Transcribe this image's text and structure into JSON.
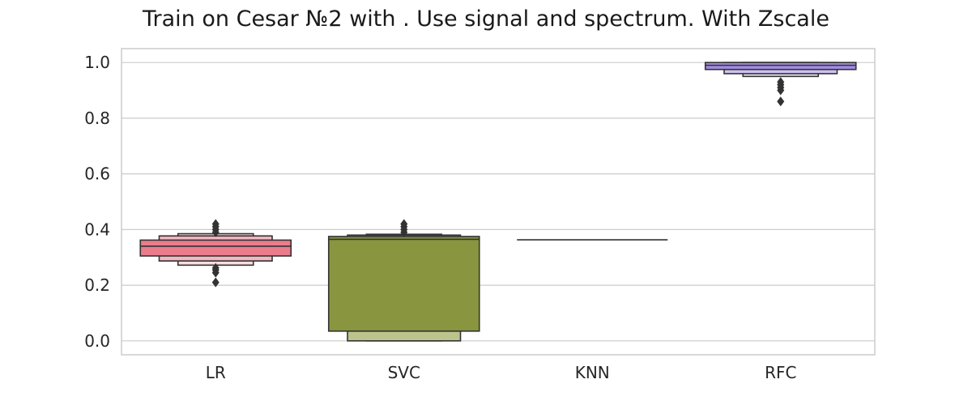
{
  "chart_data": {
    "type": "boxen",
    "title": "Train on Cesar №2 with . Use signal and spectrum. With Zscale",
    "xlabel": "",
    "ylabel": "",
    "ylim": [
      -0.05,
      1.05
    ],
    "yticks": [
      0.0,
      0.2,
      0.4,
      0.6,
      0.8,
      1.0
    ],
    "ytick_labels": [
      "0.0",
      "0.2",
      "0.4",
      "0.6",
      "0.8",
      "1.0"
    ],
    "grid": "horizontal",
    "categories": [
      "LR",
      "SVC",
      "KNN",
      "RFC"
    ],
    "colors": [
      "#ea7c8c",
      "#8a9540",
      "#3a9e7a",
      "#a28ce0"
    ],
    "series": [
      {
        "category": "LR",
        "median": 0.34,
        "letter_values": [
          {
            "low": 0.305,
            "high": 0.362,
            "color": "#ea7c8c"
          },
          {
            "low": 0.287,
            "high": 0.377,
            "color": "#f2b8c0"
          },
          {
            "low": 0.272,
            "high": 0.385,
            "color": "#f8dde1"
          }
        ],
        "outliers": [
          0.21,
          0.245,
          0.255,
          0.262,
          0.39,
          0.4,
          0.41,
          0.42
        ]
      },
      {
        "category": "SVC",
        "median": 0.365,
        "letter_values": [
          {
            "low": 0.035,
            "high": 0.375,
            "color": "#8a9540"
          },
          {
            "low": 0.0,
            "high": 0.38,
            "color": "#bcc38d"
          },
          {
            "low": 0.0,
            "high": 0.383,
            "color": "#dfe3c6"
          }
        ],
        "outliers": [
          0.39,
          0.4,
          0.41,
          0.42
        ]
      },
      {
        "category": "KNN",
        "median": 0.363,
        "letter_values": [
          {
            "low": 0.363,
            "high": 0.363,
            "color": "#3a9e7a"
          }
        ],
        "outliers": []
      },
      {
        "category": "RFC",
        "median": 0.99,
        "letter_values": [
          {
            "low": 0.975,
            "high": 1.0,
            "color": "#a28ce0"
          },
          {
            "low": 0.96,
            "high": 1.0,
            "color": "#cdc2ef"
          },
          {
            "low": 0.95,
            "high": 1.0,
            "color": "#e8e2f8"
          }
        ],
        "outliers": [
          0.86,
          0.9,
          0.91,
          0.92,
          0.93
        ]
      }
    ]
  }
}
